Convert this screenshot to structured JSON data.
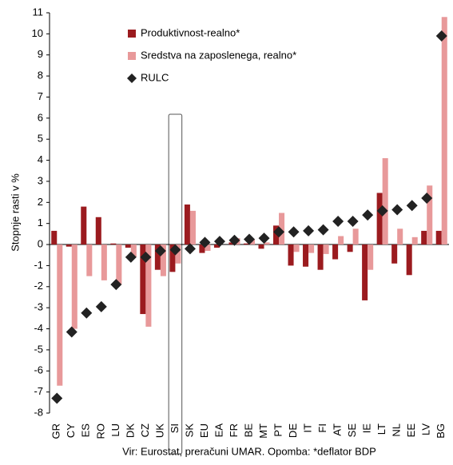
{
  "chart_data": {
    "type": "bar",
    "y_axis_label": "Stopnje rasti v %",
    "x_axis_label": "Vir: Eurostat, preračuni UMAR. Opomba: *deflator BDP",
    "categories": [
      "GR",
      "CY",
      "ES",
      "RO",
      "LU",
      "DK",
      "CZ",
      "UK",
      "SI",
      "SK",
      "EU",
      "EA",
      "FR",
      "BE",
      "MT",
      "PT",
      "DE",
      "IT",
      "FI",
      "AT",
      "SE",
      "IE",
      "LT",
      "NL",
      "EE",
      "LV",
      "BG"
    ],
    "series": [
      {
        "name": "Produktivnost-realno*",
        "color": "#9b1b1f",
        "kind": "bar",
        "values": [
          0.65,
          -0.1,
          1.8,
          1.3,
          0.05,
          -0.15,
          -3.3,
          -1.2,
          -1.3,
          1.9,
          -0.4,
          -0.15,
          0.1,
          0.05,
          -0.2,
          0.9,
          -1.0,
          -1.05,
          -1.2,
          -0.7,
          -0.35,
          -2.65,
          2.45,
          -0.9,
          -1.45,
          0.65,
          0.65
        ]
      },
      {
        "name": "Sredstva na zaposlenega, realno*",
        "color": "#e8999a",
        "kind": "bar",
        "values": [
          -6.7,
          -4.0,
          -1.5,
          -1.7,
          -1.9,
          -0.6,
          -3.9,
          -1.5,
          -0.9,
          1.6,
          -0.3,
          0.0,
          0.3,
          0.25,
          0.1,
          1.5,
          -0.35,
          -0.4,
          -0.45,
          0.4,
          0.75,
          -1.2,
          4.1,
          0.75,
          0.35,
          2.8,
          10.8
        ]
      },
      {
        "name": "RULC",
        "color": "#222222",
        "kind": "marker",
        "values": [
          -7.3,
          -4.15,
          -3.25,
          -2.95,
          -1.9,
          -0.6,
          -0.6,
          -0.3,
          -0.25,
          -0.2,
          0.1,
          0.15,
          0.2,
          0.25,
          0.3,
          0.6,
          0.6,
          0.65,
          0.7,
          1.1,
          1.1,
          1.4,
          1.6,
          1.65,
          1.85,
          2.2,
          9.9
        ]
      }
    ],
    "ylim": [
      -8,
      11
    ],
    "yticks": [
      -8,
      -7,
      -6,
      -5,
      -4,
      -3,
      -2,
      -1,
      0,
      1,
      2,
      3,
      4,
      5,
      6,
      7,
      8,
      9,
      10,
      11
    ]
  }
}
